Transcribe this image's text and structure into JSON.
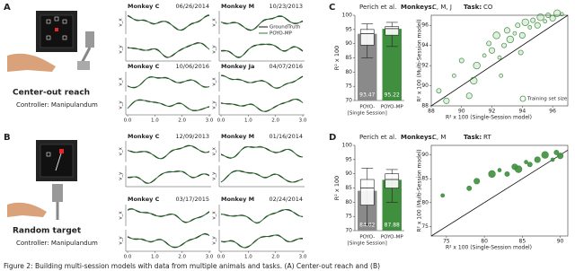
{
  "caption": "Figure 2: Building multi-session models with data from multiple animals and tasks. (A) Center-out reach and (B)",
  "trace_axes": {
    "vx": "v_x",
    "vy": "v_y",
    "xticks": [
      {
        "value": 0,
        "label": "0.0"
      },
      {
        "value": 1,
        "label": "1.0"
      },
      {
        "value": 2,
        "label": "2.0"
      },
      {
        "value": 3,
        "label": "3.0"
      }
    ]
  },
  "legend": [
    "GroundTruth",
    "POYO-MP"
  ],
  "panels": [
    {
      "label": "A",
      "task": "Center-out reach",
      "controller": "Controller: Manipulandum",
      "plots": [
        {
          "monkey": "Monkey C",
          "date": "06/26/2014"
        },
        {
          "monkey": "Monkey M",
          "date": "10/23/2013"
        },
        {
          "monkey": "Monkey C",
          "date": "10/06/2016"
        },
        {
          "monkey": "Monkey Ja",
          "date": "04/07/2016"
        }
      ]
    },
    {
      "label": "B",
      "task": "Random target",
      "controller": "Controller: Manipulandum",
      "plots": [
        {
          "monkey": "Monkey C",
          "date": "12/09/2013"
        },
        {
          "monkey": "Monkey M",
          "date": "01/16/2014"
        },
        {
          "monkey": "Monkey C",
          "date": "03/17/2015"
        },
        {
          "monkey": "Monkey M",
          "date": "02/24/2014"
        }
      ]
    }
  ],
  "results": [
    {
      "label": "C",
      "source": "Perich et al.",
      "monkeys_label": "Monkeys:",
      "monkeys": "C, M, J",
      "task_label": "Task:",
      "task": "CO",
      "bar": {
        "type": "bar",
        "ylabel": "R² x 100",
        "ylim": [
          70,
          100
        ],
        "yticks": [
          70,
          75,
          80,
          85,
          90,
          95,
          100
        ],
        "categories": [
          [
            "POYO-",
            "[Single Session]"
          ],
          [
            "POYO-MP"
          ]
        ],
        "values": [
          93.47,
          95.22
        ],
        "colors": [
          "#8a8a8a",
          "#3f8f3f"
        ],
        "boxes": [
          [
            85,
            89.5,
            93.5,
            95,
            97
          ],
          [
            89,
            93,
            95.3,
            96,
            97.5
          ]
        ]
      },
      "scatter": {
        "type": "scatter",
        "xlabel": "R² x 100 (Single-Session model)",
        "ylabel": "R² x 100 (Multi-Session model)",
        "xlim": [
          88,
          97
        ],
        "ylim": [
          88,
          97
        ],
        "xticks": [
          88,
          90,
          92,
          94,
          96
        ],
        "yticks": [
          88,
          90,
          92,
          94,
          96
        ],
        "color": "#3f8f3f",
        "legend": "Training set size",
        "x": [
          89.5,
          90,
          90.5,
          91,
          91.5,
          91.8,
          92,
          92.3,
          92.5,
          92.8,
          93,
          93.2,
          93.5,
          93.7,
          94,
          94.2,
          94.5,
          94.7,
          95,
          95.2,
          95.5,
          95.7,
          96,
          96.3,
          96.6,
          88.5,
          89,
          90.8,
          92.6,
          93.9
        ],
        "y": [
          91,
          92.5,
          89,
          92,
          93,
          94.2,
          93.5,
          95,
          92.8,
          94,
          95.5,
          94.6,
          95.2,
          96,
          95,
          96.3,
          95.8,
          96.5,
          96,
          96.8,
          96.4,
          97,
          96.7,
          97.2,
          97.1,
          89.5,
          88.5,
          90.5,
          91,
          93.3
        ]
      }
    },
    {
      "label": "D",
      "source": "Perich et al.",
      "monkeys_label": "Monkeys:",
      "monkeys": "C, M",
      "task_label": "Task:",
      "task": "RT",
      "bar": {
        "type": "bar",
        "ylabel": "R² x 100",
        "ylim": [
          70,
          100
        ],
        "yticks": [
          70,
          75,
          80,
          85,
          90,
          95,
          100
        ],
        "categories": [
          [
            "POYO-",
            "[Single Session]"
          ],
          [
            "POYO-MP"
          ]
        ],
        "values": [
          84.02,
          87.88
        ],
        "colors": [
          "#8a8a8a",
          "#3f8f3f"
        ],
        "boxes": [
          [
            72,
            79,
            85,
            88,
            92
          ],
          [
            80,
            85,
            88,
            90,
            91.5
          ]
        ]
      },
      "scatter": {
        "type": "scatter",
        "xlabel": "R² x 100 (Single-Session model)",
        "ylabel": "R² x 100 (Multi-Session model)",
        "xlim": [
          73,
          91
        ],
        "ylim": [
          73,
          92
        ],
        "xticks": [
          75,
          80,
          85,
          90
        ],
        "yticks": [
          75,
          80,
          85,
          90
        ],
        "color": "#3f8f3f",
        "x": [
          74.5,
          78,
          79,
          81,
          82,
          83,
          84,
          84.5,
          85.5,
          86,
          87,
          88,
          89,
          89.5,
          90
        ],
        "y": [
          81.5,
          83,
          84.5,
          86,
          86.8,
          86,
          87.5,
          87,
          88.5,
          88,
          89,
          90,
          89,
          90.5,
          89.8
        ]
      }
    }
  ]
}
